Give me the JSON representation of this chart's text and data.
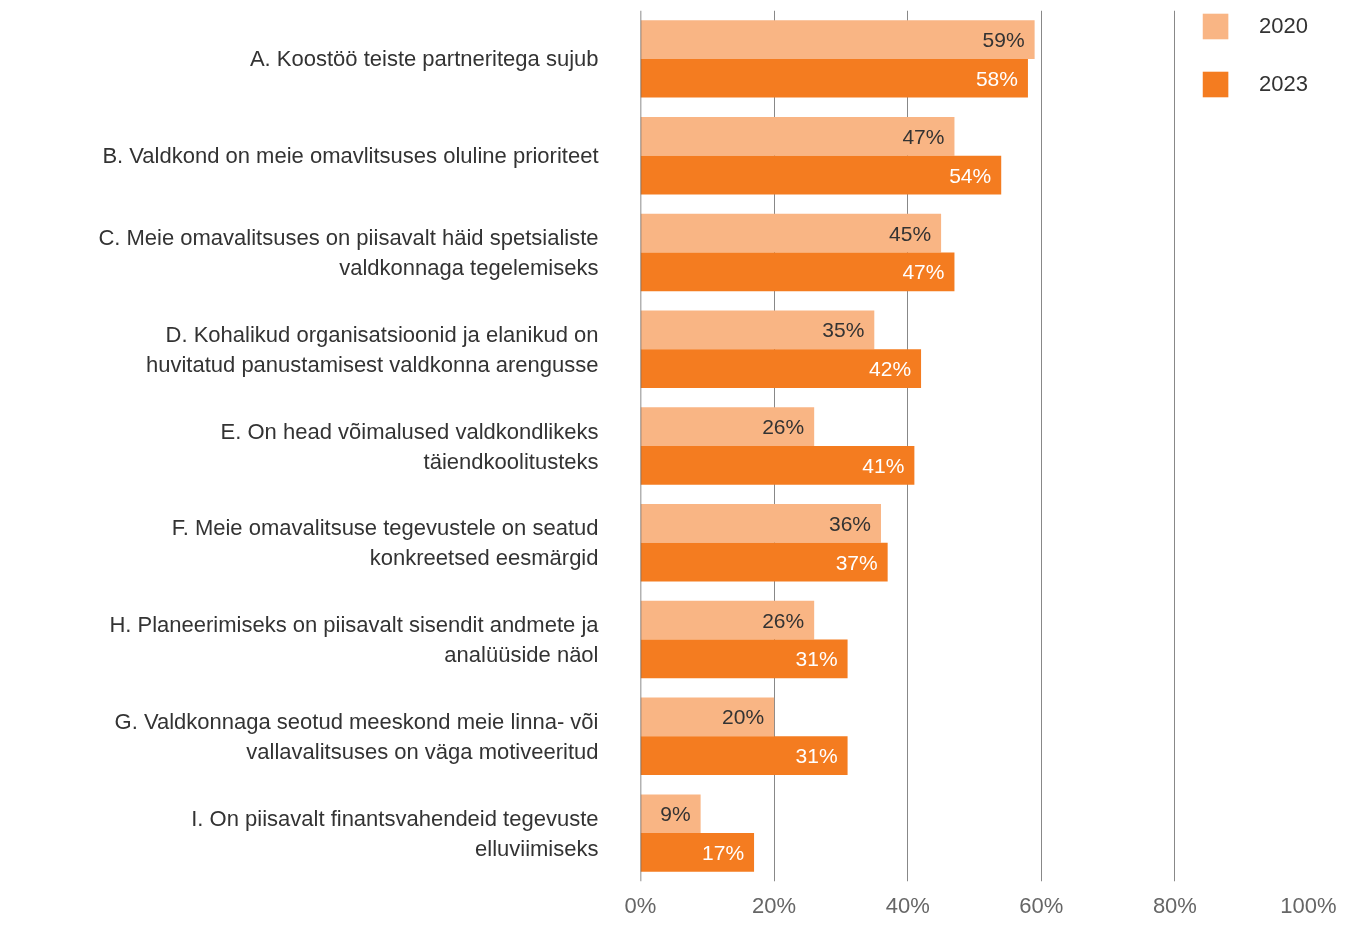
{
  "chart_data": {
    "type": "bar",
    "orientation": "horizontal",
    "categories": [
      "A. Koostöö teiste partneritega sujub",
      "B. Valdkond on meie omavlitsuses oluline prioriteet",
      "C. Meie omavalitsuses on piisavalt häid spetsialiste valdkonnaga tegelemiseks",
      "D. Kohalikud organisatsioonid ja elanikud on huvitatud panustamisest valdkonna arengusse",
      "E. On head võimalused valdkondlikeks täiendkoolitusteks",
      "F. Meie omavalitsuse tegevustele on seatud konkreetsed eesmärgid",
      "H. Planeerimiseks on piisavalt sisendit andmete ja analüüside näol",
      "G. Valdkonnaga seotud meeskond meie linna- või vallavalitsuses on väga motiveeritud",
      "I. On piisavalt finantsvahendeid tegevuste elluviimiseks"
    ],
    "series": [
      {
        "name": "2020",
        "color": "#f9b584",
        "values": [
          59,
          47,
          45,
          35,
          26,
          36,
          26,
          20,
          9
        ],
        "value_labels": [
          "59%",
          "47%",
          "45%",
          "35%",
          "26%",
          "36%",
          "26%",
          "20%",
          "9%"
        ]
      },
      {
        "name": "2023",
        "color": "#f47c20",
        "values": [
          58,
          54,
          47,
          42,
          41,
          37,
          31,
          31,
          17
        ],
        "value_labels": [
          "58%",
          "54%",
          "47%",
          "42%",
          "41%",
          "37%",
          "31%",
          "31%",
          "17%"
        ]
      }
    ],
    "xlim": [
      0,
      100
    ],
    "xticks": [
      {
        "value": 0,
        "label": "0%"
      },
      {
        "value": 20,
        "label": "20%"
      },
      {
        "value": 40,
        "label": "40%"
      },
      {
        "value": 60,
        "label": "60%"
      },
      {
        "value": 80,
        "label": "80%"
      },
      {
        "value": 100,
        "label": "100%"
      }
    ],
    "grid": "x",
    "legend": "top right"
  }
}
